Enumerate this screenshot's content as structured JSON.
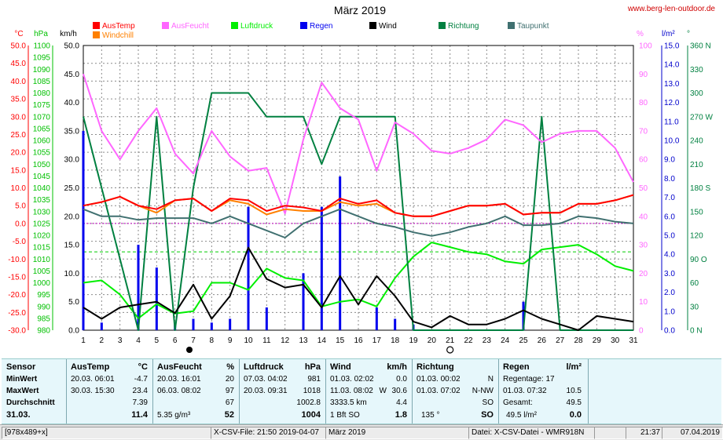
{
  "chart_data": {
    "type": "line",
    "title": "März 2019",
    "site": "www.berg-len-outdoor.de",
    "days": [
      1,
      2,
      3,
      4,
      5,
      6,
      7,
      8,
      9,
      10,
      11,
      12,
      13,
      14,
      15,
      16,
      17,
      18,
      19,
      20,
      21,
      22,
      23,
      24,
      25,
      26,
      27,
      28,
      29,
      30,
      31
    ],
    "left_axis_units": [
      "°C",
      "hPa",
      "km/h"
    ],
    "right_axis_units": [
      "%",
      "l/m²",
      "°"
    ],
    "legend": [
      {
        "name": "AusTemp",
        "color": "#ff0000"
      },
      {
        "name": "Windchill",
        "color": "#ff8000"
      },
      {
        "name": "AusFeucht",
        "color": "#ff66ff"
      },
      {
        "name": "Luftdruck",
        "color": "#00ee00"
      },
      {
        "name": "Regen",
        "color": "#0000ee"
      },
      {
        "name": "Wind",
        "color": "#000000"
      },
      {
        "name": "Richtung",
        "color": "#008040"
      },
      {
        "name": "Taupunkt",
        "color": "#407070"
      }
    ],
    "axes": {
      "temp": {
        "min": -30,
        "max": 50,
        "step": 5,
        "ticks": [
          "50.0",
          "45.0",
          "40.0",
          "35.0",
          "30.0",
          "25.0",
          "20.0",
          "15.0",
          "10.0",
          "5.0",
          "0.0",
          "-5.0",
          "-10.0",
          "-15.0",
          "-20.0",
          "-25.0",
          "-30.0"
        ]
      },
      "pressure": {
        "min": 980,
        "max": 1100,
        "step": 5,
        "ticks": [
          "1100",
          "1095",
          "1090",
          "1085",
          "1080",
          "1075",
          "1070",
          "1065",
          "1060",
          "1055",
          "1050",
          "1045",
          "1040",
          "1035",
          "1030",
          "1025",
          "1020",
          "1015",
          "1010",
          "1005",
          "1000",
          "995",
          "990",
          "985",
          "980"
        ]
      },
      "wind": {
        "min": 0,
        "max": 50,
        "step": 5,
        "ticks": [
          "50.0",
          "45.0",
          "40.0",
          "35.0",
          "30.0",
          "25.0",
          "20.0",
          "15.0",
          "10.0",
          "5.0",
          "0.0"
        ]
      },
      "humidity": {
        "min": 0,
        "max": 100,
        "step": 10,
        "ticks": [
          "100",
          "90",
          "80",
          "70",
          "60",
          "50",
          "40",
          "30",
          "20",
          "10",
          "0"
        ]
      },
      "rain": {
        "min": 0,
        "max": 15,
        "step": 1,
        "ticks": [
          "15.0",
          "14.0",
          "13.0",
          "12.0",
          "11.0",
          "10.0",
          "9.0",
          "8.0",
          "7.0",
          "6.0",
          "5.0",
          "4.0",
          "3.0",
          "2.0",
          "1.0",
          "0.0"
        ]
      },
      "direction": {
        "min": 0,
        "max": 360,
        "step": 30,
        "ticks": [
          "360 N",
          "330",
          "300",
          "270 W",
          "240",
          "210",
          "180 S",
          "150",
          "120",
          "90 O",
          "60",
          "30",
          "0 N"
        ]
      }
    },
    "series": [
      {
        "name": "AusTemp",
        "axis": "temp",
        "values": [
          5.0,
          6.0,
          7.5,
          5.0,
          4.0,
          6.5,
          7.0,
          3.5,
          7.0,
          6.5,
          3.5,
          5.0,
          4.5,
          3.5,
          7.0,
          5.5,
          6.5,
          3.0,
          2.0,
          2.0,
          3.5,
          5.0,
          5.0,
          5.5,
          2.5,
          3.0,
          3.0,
          5.5,
          5.5,
          6.5,
          8.0
        ]
      },
      {
        "name": "Windchill",
        "axis": "temp",
        "values": [
          5.0,
          6.0,
          7.5,
          5.0,
          3.0,
          6.5,
          7.0,
          3.5,
          6.5,
          5.5,
          2.5,
          4.0,
          3.5,
          3.5,
          6.0,
          5.0,
          5.5,
          3.0,
          2.0,
          2.0,
          3.5,
          5.0,
          5.0,
          5.5,
          2.5,
          3.0,
          3.0,
          5.5,
          5.5,
          6.5,
          8.0
        ]
      },
      {
        "name": "AusFeucht",
        "axis": "humidity",
        "values": [
          90,
          70,
          60,
          70,
          78,
          62,
          55,
          70,
          61,
          56,
          57,
          41,
          67,
          87,
          78,
          74,
          56,
          73,
          69,
          63,
          62,
          64,
          67,
          74,
          72,
          66,
          69,
          70,
          70,
          64,
          52
        ]
      },
      {
        "name": "Luftdruck",
        "axis": "pressure",
        "values": [
          1000,
          1001,
          995,
          985,
          991,
          987,
          988,
          1000,
          1000,
          997,
          1006,
          1002,
          1001,
          990,
          992,
          993,
          990,
          1002,
          1011,
          1017,
          1015,
          1013,
          1012,
          1009,
          1008,
          1014,
          1015,
          1016,
          1012,
          1007,
          1005
        ]
      },
      {
        "name": "Wind",
        "axis": "wind",
        "values": [
          4.0,
          2.0,
          4.0,
          4.5,
          5.0,
          3.0,
          8.0,
          2.0,
          6.0,
          14.5,
          9.0,
          7.5,
          8.0,
          4.0,
          9.5,
          4.5,
          9.5,
          6.0,
          1.5,
          0.5,
          2.5,
          1.0,
          1.0,
          2.0,
          3.5,
          2.0,
          1.0,
          0.0,
          2.5,
          2.0,
          1.5
        ]
      },
      {
        "name": "Richtung",
        "axis": "direction",
        "values": [
          270,
          180,
          90,
          0,
          270,
          0,
          180,
          300,
          300,
          300,
          270,
          270,
          270,
          210,
          270,
          270,
          270,
          270,
          0,
          0,
          0,
          0,
          0,
          0,
          0,
          270,
          0,
          0,
          0,
          0,
          0
        ]
      },
      {
        "name": "Taupunkt",
        "axis": "temp",
        "values": [
          4.0,
          2.0,
          2.0,
          1.0,
          1.5,
          1.5,
          1.5,
          0.0,
          2.0,
          0.0,
          -2.0,
          -4.0,
          0.0,
          2.0,
          4.0,
          2.0,
          0.0,
          -1.0,
          -2.5,
          -3.5,
          -2.5,
          -1.0,
          0.0,
          2.0,
          -0.5,
          -0.5,
          0.0,
          2.0,
          1.5,
          0.5,
          0.0
        ]
      },
      {
        "name": "Regen",
        "axis": "rain",
        "type": "bar",
        "values": [
          10.5,
          0.4,
          0,
          4.5,
          3.3,
          0.4,
          0.6,
          0.4,
          0.6,
          6.5,
          1.2,
          0,
          3.0,
          6.5,
          8.1,
          0,
          1.2,
          0.6,
          0.3,
          0,
          0,
          0,
          0,
          0,
          1.5,
          0,
          0,
          0,
          0,
          0,
          0
        ]
      }
    ],
    "markers": {
      "full_moon_day": 7,
      "new_moon_day": 21
    },
    "ref_lines": {
      "zero_temp": 0,
      "pressure_ref": 1013
    }
  },
  "stats": {
    "sensor": {
      "header": "Sensor",
      "rows": [
        "MinWert",
        "MaxWert",
        "Durchschnitt",
        "31.03."
      ]
    },
    "austemp": {
      "header": "AusTemp",
      "unit": "°C",
      "min_time": "20.03.  06:01",
      "min_val": "-4.7",
      "max_time": "30.03.  15:30",
      "max_val": "23.4",
      "avg": "7.39",
      "today": "11.4"
    },
    "ausfeucht": {
      "header": "AusFeucht",
      "unit": "%",
      "min_time": "20.03.  16:01",
      "min_val": "20",
      "max_time": "06.03.  08:02",
      "max_val": "97",
      "avg": "67",
      "abs": "5.35 g/m³",
      "today": "52"
    },
    "luftdruck": {
      "header": "Luftdruck",
      "unit": "hPa",
      "min_time": "07.03.  04:02",
      "min_val": "981",
      "max_time": "20.03.  09:31",
      "max_val": "1018",
      "avg": "1002.8",
      "today": "1004"
    },
    "wind": {
      "header": "Wind",
      "unit": "km/h",
      "min_time": "01.03.  02:02",
      "min_val": "0.0",
      "max_time": "11.03.  08:02",
      "max_dir": "W",
      "max_val": "30.6",
      "dist": "3333.5 km",
      "avg": "4.4",
      "bft": "1 Bft SO",
      "today": "1.8"
    },
    "richtung": {
      "header": "Richtung",
      "min_time": "01.03.  00:02",
      "min_val": "N",
      "max_time": "01.03.  07:02",
      "max_val": "N-NW",
      "avg": "SO",
      "deg": "135 °",
      "today": "SO"
    },
    "regen": {
      "header": "Regen",
      "unit": "l/m²",
      "days": "Regentage: 17",
      "max_time": "01.03.  07:32",
      "max_val": "10.5",
      "total_label": "Gesamt:",
      "total": "49.5",
      "avg": "49.5 l/m²",
      "today": "0.0"
    }
  },
  "statusbar": {
    "size": "[978x489+x]",
    "file": "X-CSV-File:  21:50  2019-04-07",
    "month": "März 2019",
    "datafile": "Datei: X-CSV-Datei - WMR918N",
    "time": "21:37",
    "date": "07.04.2019"
  }
}
